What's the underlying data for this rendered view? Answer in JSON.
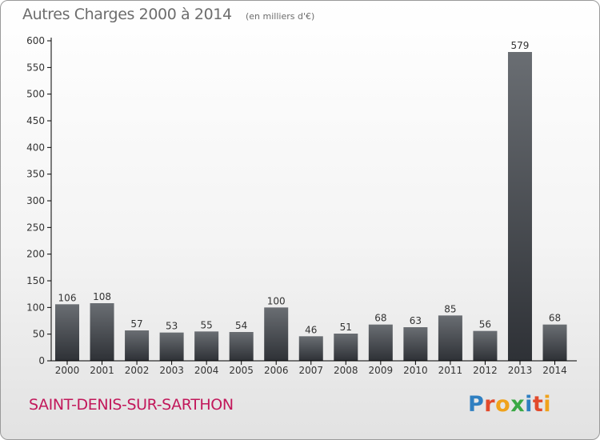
{
  "header": {
    "title": "Autres Charges 2000 à 2014",
    "unit": "(en milliers d'€)"
  },
  "footer": {
    "commune": "SAINT-DENIS-SUR-SARTHON",
    "logo_text": "Proxiti"
  },
  "colors": {
    "bar_top": "#6a6e73",
    "bar_bottom": "#2e3136",
    "title": "#6d6d6d",
    "commune": "#c2185b",
    "axis": "#000000"
  },
  "chart_data": {
    "type": "bar",
    "title": "Autres Charges 2000 à 2014",
    "subtitle": "(en milliers d'€)",
    "categories": [
      "2000",
      "2001",
      "2002",
      "2003",
      "2004",
      "2005",
      "2006",
      "2007",
      "2008",
      "2009",
      "2010",
      "2011",
      "2012",
      "2013",
      "2014"
    ],
    "values": [
      106,
      108,
      57,
      53,
      55,
      54,
      100,
      46,
      51,
      68,
      63,
      85,
      56,
      579,
      68
    ],
    "ylim": [
      0,
      600
    ],
    "yticks": [
      0,
      50,
      100,
      150,
      200,
      250,
      300,
      350,
      400,
      450,
      500,
      550,
      600
    ],
    "grid": false,
    "legend": "none"
  }
}
